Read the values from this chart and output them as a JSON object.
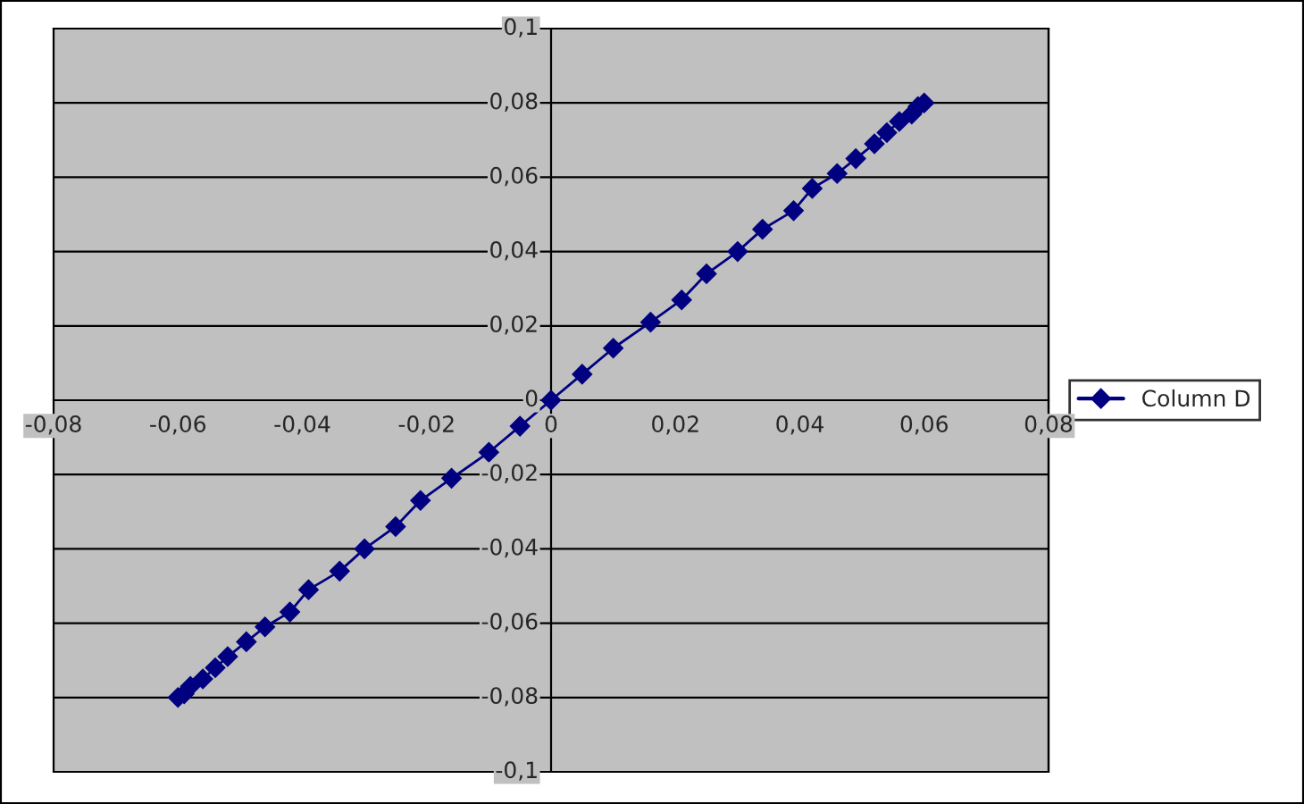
{
  "chart_data": {
    "type": "line",
    "series": [
      {
        "name": "Column D",
        "color": "#000080",
        "x": [
          -0.06,
          -0.059,
          -0.058,
          -0.056,
          -0.054,
          -0.052,
          -0.049,
          -0.046,
          -0.042,
          -0.039,
          -0.034,
          -0.03,
          -0.025,
          -0.021,
          -0.016,
          -0.01,
          -0.005,
          0,
          0.005,
          0.01,
          0.016,
          0.021,
          0.025,
          0.03,
          0.034,
          0.039,
          0.042,
          0.046,
          0.049,
          0.052,
          0.054,
          0.056,
          0.058,
          0.059,
          0.06
        ],
        "values": [
          -0.08,
          -0.079,
          -0.077,
          -0.075,
          -0.072,
          -0.069,
          -0.065,
          -0.061,
          -0.057,
          -0.051,
          -0.046,
          -0.04,
          -0.034,
          -0.027,
          -0.021,
          -0.014,
          -0.007,
          0,
          0.007,
          0.014,
          0.021,
          0.027,
          0.034,
          0.04,
          0.046,
          0.051,
          0.057,
          0.061,
          0.065,
          0.069,
          0.072,
          0.075,
          0.077,
          0.079,
          0.08
        ]
      }
    ],
    "xlim": [
      -0.08,
      0.08
    ],
    "xticks": [
      {
        "value": -0.08,
        "label": "-0,08"
      },
      {
        "value": -0.06,
        "label": "-0,06"
      },
      {
        "value": -0.04,
        "label": "-0,04"
      },
      {
        "value": -0.02,
        "label": "-0,02"
      },
      0,
      {
        "value": 0.02,
        "label": "0,02"
      },
      {
        "value": 0.04,
        "label": "0,04"
      },
      {
        "value": 0.06,
        "label": "0,06"
      },
      {
        "value": 0.08,
        "label": "0,08"
      }
    ],
    "ylim": [
      -0.1,
      0.1
    ],
    "yticks": [
      {
        "value": -0.1,
        "label": "-0,1"
      },
      {
        "value": -0.08,
        "label": "-0,08"
      },
      {
        "value": -0.06,
        "label": "-0,06"
      },
      {
        "value": -0.04,
        "label": "-0,04"
      },
      {
        "value": -0.02,
        "label": "-0,02"
      },
      0,
      {
        "value": 0.02,
        "label": "0,02"
      },
      {
        "value": 0.04,
        "label": "0,04"
      },
      {
        "value": 0.06,
        "label": "0,06"
      },
      {
        "value": 0.08,
        "label": "0,08"
      },
      {
        "value": 0.1,
        "label": "0,1"
      }
    ],
    "grid": "y",
    "legend": "right",
    "marker": "diamond",
    "line_style": "solid"
  }
}
